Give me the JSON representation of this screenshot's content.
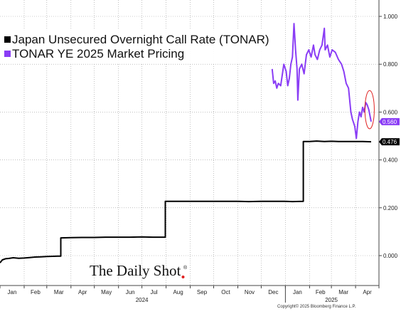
{
  "chart_data": {
    "type": "line",
    "title": "",
    "xlabel": "",
    "ylabel": "",
    "ylim": [
      -0.13,
      1.05
    ],
    "y_ticks": [
      "0.000",
      "0.200",
      "0.400",
      "0.600",
      "0.800",
      "1.000"
    ],
    "x_tick_labels": [
      "Jan",
      "Feb",
      "Mar",
      "Apr",
      "May",
      "Jun",
      "Jul",
      "Aug",
      "Sep",
      "Oct",
      "Nov",
      "Dec",
      "Jan",
      "Feb",
      "Mar",
      "Apr"
    ],
    "year_labels": [
      "2024",
      "2025"
    ],
    "grid": true,
    "legend_position": "top-left",
    "series": [
      {
        "name": "Japan Unsecured Overnight Call Rate (TONAR)",
        "color": "#000000",
        "last_value_label": "0.476",
        "points": [
          [
            "2024-01-01",
            -0.03
          ],
          [
            "2024-01-04",
            -0.018
          ],
          [
            "2024-01-08",
            -0.013
          ],
          [
            "2024-01-12",
            -0.012
          ],
          [
            "2024-01-18",
            -0.009
          ],
          [
            "2024-01-25",
            -0.011
          ],
          [
            "2024-02-01",
            -0.01
          ],
          [
            "2024-02-08",
            -0.008
          ],
          [
            "2024-02-15",
            -0.006
          ],
          [
            "2024-02-22",
            -0.005
          ],
          [
            "2024-03-01",
            -0.004
          ],
          [
            "2024-03-08",
            -0.003
          ],
          [
            "2024-03-15",
            -0.002
          ],
          [
            "2024-03-19",
            -0.002
          ],
          [
            "2024-03-19",
            0.074
          ],
          [
            "2024-04-01",
            0.075
          ],
          [
            "2024-04-15",
            0.076
          ],
          [
            "2024-05-01",
            0.076
          ],
          [
            "2024-05-15",
            0.077
          ],
          [
            "2024-06-01",
            0.077
          ],
          [
            "2024-06-15",
            0.077
          ],
          [
            "2024-07-01",
            0.078
          ],
          [
            "2024-07-15",
            0.077
          ],
          [
            "2024-07-31",
            0.077
          ],
          [
            "2024-07-31",
            0.227
          ],
          [
            "2024-08-15",
            0.227
          ],
          [
            "2024-09-01",
            0.227
          ],
          [
            "2024-09-15",
            0.227
          ],
          [
            "2024-10-01",
            0.227
          ],
          [
            "2024-10-15",
            0.227
          ],
          [
            "2024-11-01",
            0.227
          ],
          [
            "2024-11-15",
            0.226
          ],
          [
            "2024-12-01",
            0.227
          ],
          [
            "2024-12-15",
            0.227
          ],
          [
            "2024-12-31",
            0.227
          ],
          [
            "2025-01-10",
            0.226
          ],
          [
            "2025-01-24",
            0.227
          ],
          [
            "2025-01-24",
            0.477
          ],
          [
            "2025-02-01",
            0.477
          ],
          [
            "2025-02-10",
            0.479
          ],
          [
            "2025-02-20",
            0.477
          ],
          [
            "2025-03-01",
            0.478
          ],
          [
            "2025-03-10",
            0.477
          ],
          [
            "2025-03-20",
            0.477
          ],
          [
            "2025-04-01",
            0.477
          ],
          [
            "2025-04-10",
            0.477
          ],
          [
            "2025-04-21",
            0.476
          ]
        ]
      },
      {
        "name": "TONAR YE 2025 Market Pricing",
        "color": "#8a3df5",
        "last_value_label": "0.560",
        "points": [
          [
            "2024-12-15",
            0.78
          ],
          [
            "2024-12-17",
            0.72
          ],
          [
            "2024-12-19",
            0.73
          ],
          [
            "2024-12-21",
            0.7
          ],
          [
            "2024-12-23",
            0.72
          ],
          [
            "2024-12-26",
            0.71
          ],
          [
            "2024-12-30",
            0.8
          ],
          [
            "2025-01-02",
            0.77
          ],
          [
            "2025-01-04",
            0.71
          ],
          [
            "2025-01-06",
            0.74
          ],
          [
            "2025-01-08",
            0.8
          ],
          [
            "2025-01-10",
            0.83
          ],
          [
            "2025-01-12",
            0.97
          ],
          [
            "2025-01-14",
            0.86
          ],
          [
            "2025-01-16",
            0.78
          ],
          [
            "2025-01-17",
            0.65
          ],
          [
            "2025-01-19",
            0.78
          ],
          [
            "2025-01-22",
            0.8
          ],
          [
            "2025-01-25",
            0.76
          ],
          [
            "2025-01-28",
            0.84
          ],
          [
            "2025-01-31",
            0.86
          ],
          [
            "2025-02-03",
            0.83
          ],
          [
            "2025-02-06",
            0.88
          ],
          [
            "2025-02-08",
            0.84
          ],
          [
            "2025-02-11",
            0.82
          ],
          [
            "2025-02-14",
            0.86
          ],
          [
            "2025-02-17",
            0.88
          ],
          [
            "2025-02-20",
            0.95
          ],
          [
            "2025-02-21",
            0.86
          ],
          [
            "2025-02-24",
            0.88
          ],
          [
            "2025-02-27",
            0.83
          ],
          [
            "2025-03-02",
            0.86
          ],
          [
            "2025-03-06",
            0.85
          ],
          [
            "2025-03-10",
            0.82
          ],
          [
            "2025-03-14",
            0.8
          ],
          [
            "2025-03-17",
            0.77
          ],
          [
            "2025-03-20",
            0.72
          ],
          [
            "2025-03-23",
            0.7
          ],
          [
            "2025-03-26",
            0.6
          ],
          [
            "2025-03-28",
            0.57
          ],
          [
            "2025-03-31",
            0.54
          ],
          [
            "2025-04-02",
            0.49
          ],
          [
            "2025-04-04",
            0.56
          ],
          [
            "2025-04-06",
            0.6
          ],
          [
            "2025-04-08",
            0.58
          ],
          [
            "2025-04-10",
            0.62
          ],
          [
            "2025-04-12",
            0.6
          ],
          [
            "2025-04-14",
            0.64
          ],
          [
            "2025-04-16",
            0.63
          ],
          [
            "2025-04-18",
            0.61
          ],
          [
            "2025-04-21",
            0.56
          ]
        ]
      }
    ],
    "annotations": [
      {
        "type": "ellipse",
        "color": "#e02020",
        "x_range": [
          "2025-04-13",
          "2025-04-25"
        ],
        "y_range": [
          0.53,
          0.69
        ]
      }
    ]
  },
  "branding": {
    "logo": "The Daily Shot",
    "registered": "®",
    "credit": "Copyright© 2025 Bloomberg Finance L.P."
  },
  "colors": {
    "accent_dot": "#e02020",
    "grid": "#9a9a9a"
  }
}
